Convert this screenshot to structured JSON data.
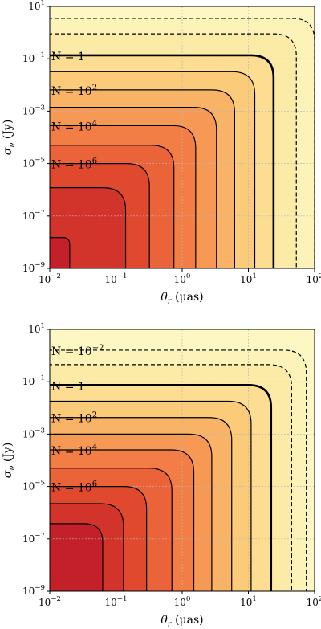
{
  "chart_data": [
    {
      "type": "heatmap",
      "xlabel": "θ_r (μas)",
      "ylabel": "σ_ν (Jy)",
      "xscale": "log",
      "yscale": "log",
      "xlim": [
        0.01,
        100
      ],
      "ylim": [
        1e-09,
        10
      ],
      "grid": true,
      "x_ticks": [
        {
          "value": 0.01,
          "base": "10",
          "exp": "−2"
        },
        {
          "value": 0.1,
          "base": "10",
          "exp": "−1"
        },
        {
          "value": 1,
          "base": "10",
          "exp": "0"
        },
        {
          "value": 10,
          "base": "10",
          "exp": "1"
        },
        {
          "value": 100,
          "base": "10",
          "exp": "2"
        }
      ],
      "y_ticks": [
        {
          "value": 10,
          "base": "10",
          "exp": "1"
        },
        {
          "value": 0.1,
          "base": "10",
          "exp": "−1"
        },
        {
          "value": 0.001,
          "base": "10",
          "exp": "−3"
        },
        {
          "value": 1e-05,
          "base": "10",
          "exp": "−5"
        },
        {
          "value": 1e-07,
          "base": "10",
          "exp": "−7"
        },
        {
          "value": 1e-09,
          "base": "10",
          "exp": "−9"
        }
      ],
      "contours": [
        {
          "N": 0.01,
          "theta_max": 100,
          "sigma_max": 3.5,
          "style": "dashed"
        },
        {
          "N": 0.1,
          "theta_max": 53,
          "sigma_max": 0.9,
          "style": "dashed"
        },
        {
          "N": 1,
          "theta_max": 24,
          "sigma_max": 0.135,
          "style": "bold"
        },
        {
          "N": 10,
          "theta_max": 12.5,
          "sigma_max": 0.032,
          "style": "solid"
        },
        {
          "N": 100,
          "theta_max": 6.2,
          "sigma_max": 0.0065,
          "style": "solid"
        },
        {
          "N": 1000,
          "theta_max": 3.3,
          "sigma_max": 0.0014,
          "style": "solid"
        },
        {
          "N": 10000,
          "theta_max": 1.6,
          "sigma_max": 0.00028,
          "style": "solid"
        },
        {
          "N": 100000,
          "theta_max": 0.75,
          "sigma_max": 5e-05,
          "style": "solid"
        },
        {
          "N": 1000000,
          "theta_max": 0.32,
          "sigma_max": 1e-05,
          "style": "solid"
        },
        {
          "N": 10000000,
          "theta_max": 0.14,
          "sigma_max": 1.2e-06,
          "style": "solid"
        },
        {
          "N": 100000000,
          "theta_max": 0.02,
          "sigma_max": 1.5e-08,
          "style": "solid"
        }
      ],
      "labels": [
        {
          "base": "N = 1",
          "exp": "",
          "sigma": 0.135
        },
        {
          "base": "N = 10",
          "exp": "2",
          "sigma": 0.0065
        },
        {
          "base": "N = 10",
          "exp": "4",
          "sigma": 0.00028
        },
        {
          "base": "N = 10",
          "exp": "6",
          "sigma": 1e-05
        }
      ],
      "colorscale": [
        "#fdf7c4",
        "#fce493",
        "#f9b25f",
        "#f2713e",
        "#dc3828",
        "#b6102a"
      ]
    },
    {
      "type": "heatmap",
      "xlabel": "θ_r (μas)",
      "ylabel": "σ_ν (Jy)",
      "xscale": "log",
      "yscale": "log",
      "xlim": [
        0.01,
        100
      ],
      "ylim": [
        1e-09,
        10
      ],
      "grid": true,
      "x_ticks": [
        {
          "value": 0.01,
          "base": "10",
          "exp": "−2"
        },
        {
          "value": 0.1,
          "base": "10",
          "exp": "−1"
        },
        {
          "value": 1,
          "base": "10",
          "exp": "0"
        },
        {
          "value": 10,
          "base": "10",
          "exp": "1"
        },
        {
          "value": 100,
          "base": "10",
          "exp": "2"
        }
      ],
      "y_ticks": [
        {
          "value": 10,
          "base": "10",
          "exp": "1"
        },
        {
          "value": 0.1,
          "base": "10",
          "exp": "−1"
        },
        {
          "value": 0.001,
          "base": "10",
          "exp": "−3"
        },
        {
          "value": 1e-05,
          "base": "10",
          "exp": "−5"
        },
        {
          "value": 1e-07,
          "base": "10",
          "exp": "−7"
        },
        {
          "value": 1e-09,
          "base": "10",
          "exp": "−9"
        }
      ],
      "contours": [
        {
          "N": 0.01,
          "theta_max": 75,
          "sigma_max": 1.6,
          "style": "dashed"
        },
        {
          "N": 0.1,
          "theta_max": 45,
          "sigma_max": 0.45,
          "style": "dashed"
        },
        {
          "N": 1,
          "theta_max": 22,
          "sigma_max": 0.075,
          "style": "bold"
        },
        {
          "N": 10,
          "theta_max": 11,
          "sigma_max": 0.018,
          "style": "solid"
        },
        {
          "N": 100,
          "theta_max": 5.6,
          "sigma_max": 0.0043,
          "style": "solid"
        },
        {
          "N": 1000,
          "theta_max": 2.8,
          "sigma_max": 0.001,
          "style": "solid"
        },
        {
          "N": 10000,
          "theta_max": 1.5,
          "sigma_max": 0.00025,
          "style": "solid"
        },
        {
          "N": 100000,
          "theta_max": 0.7,
          "sigma_max": 5e-05,
          "style": "solid"
        },
        {
          "N": 1000000,
          "theta_max": 0.29,
          "sigma_max": 1e-05,
          "style": "solid"
        },
        {
          "N": 10000000,
          "theta_max": 0.13,
          "sigma_max": 2.2e-06,
          "style": "solid"
        },
        {
          "N": 100000000,
          "theta_max": 0.063,
          "sigma_max": 3.8e-07,
          "style": "solid"
        }
      ],
      "labels": [
        {
          "base": "N = 10",
          "exp": "−2",
          "sigma": 1.6
        },
        {
          "base": "N = 1",
          "exp": "",
          "sigma": 0.075
        },
        {
          "base": "N = 10",
          "exp": "2",
          "sigma": 0.0043
        },
        {
          "base": "N = 10",
          "exp": "4",
          "sigma": 0.00025
        },
        {
          "base": "N = 10",
          "exp": "6",
          "sigma": 1e-05
        }
      ],
      "colorscale": [
        "#fdf7c4",
        "#fce493",
        "#f9b25f",
        "#f2713e",
        "#dc3828",
        "#b6102a"
      ]
    }
  ]
}
